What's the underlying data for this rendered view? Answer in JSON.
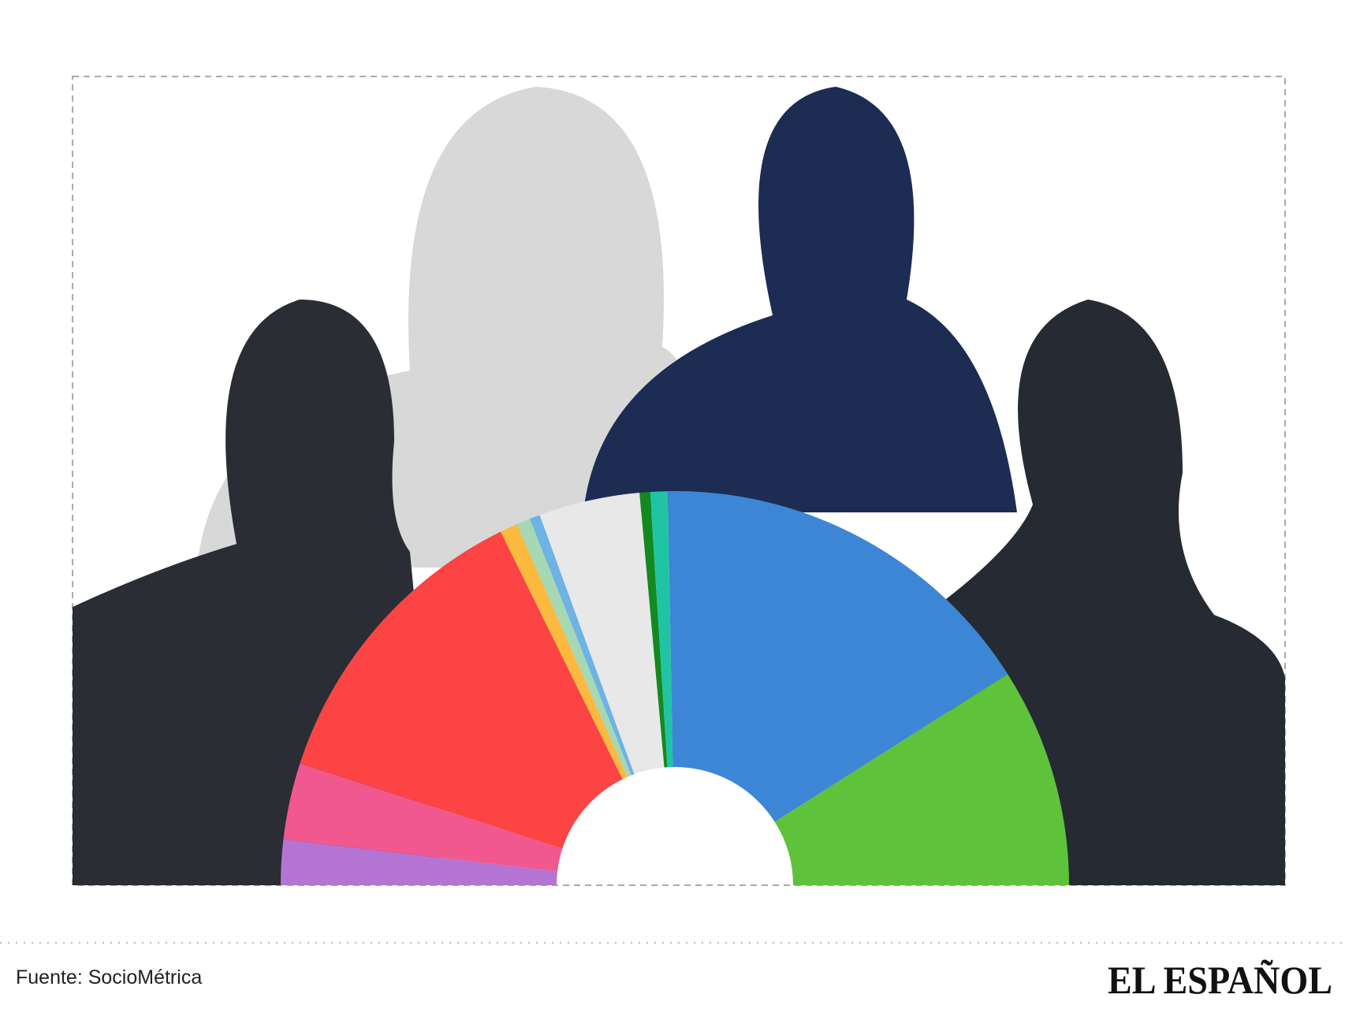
{
  "chart_data": {
    "type": "hemicycle",
    "values": [
      13,
      22,
      89,
      5,
      4,
      3,
      29,
      3,
      5,
      114,
      63
    ],
    "colors": [
      "#b474d4",
      "#f0588f",
      "#fb4443",
      "#fbb940",
      "#a6d8b4",
      "#6fb2e4",
      "#e8e8e8",
      "#138a1f",
      "#20c4a4",
      "#3d86d6",
      "#5ec23a"
    ],
    "source": "Fuente: SocioMétrica",
    "brand": "EL ESPAÑOL"
  }
}
